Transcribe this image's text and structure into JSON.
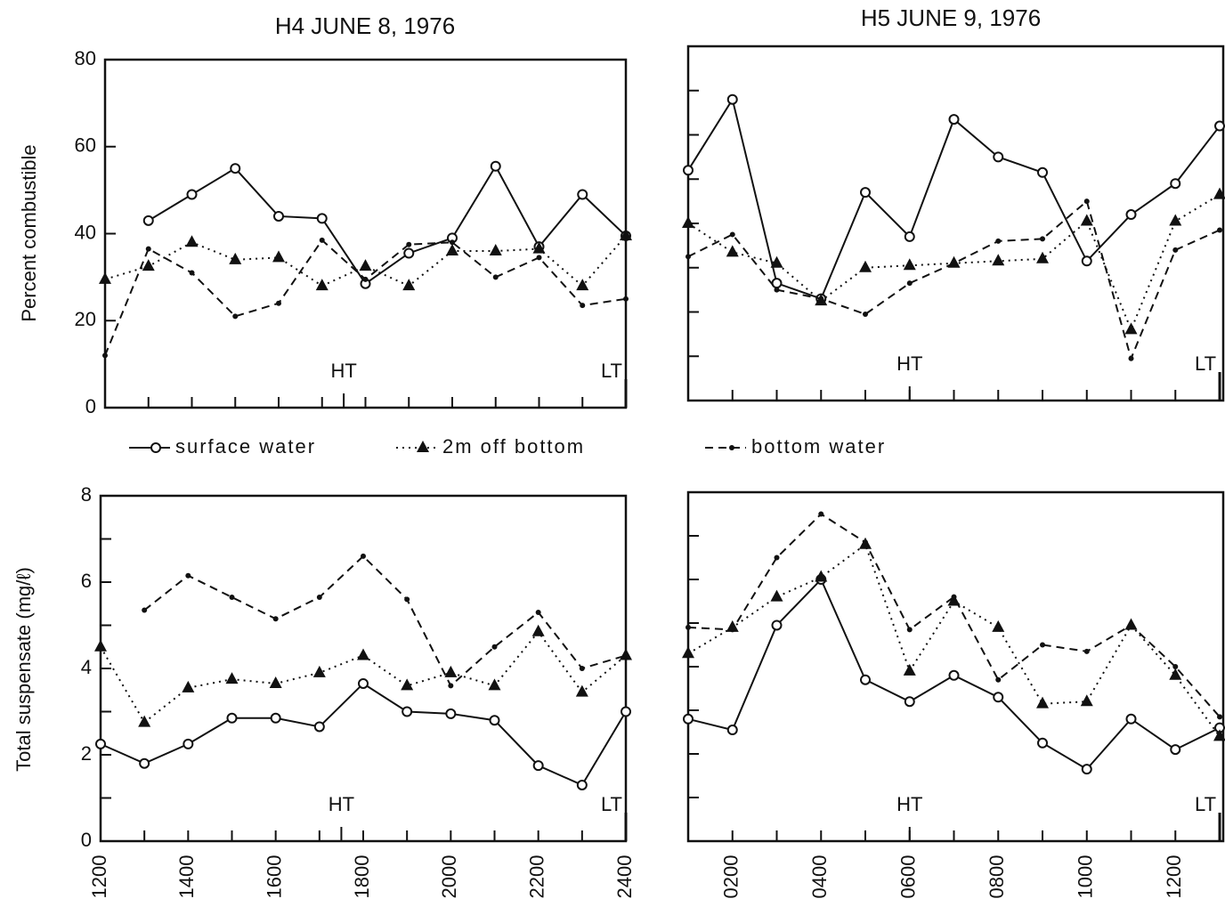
{
  "chart_data": [
    {
      "type": "line",
      "title": "H4 JUNE 8, 1976",
      "ylabel": "Percent combustible",
      "x": [
        1200,
        1300,
        1400,
        1500,
        1600,
        1700,
        1800,
        1900,
        2000,
        2100,
        2200,
        2300,
        2400
      ],
      "xlim": [
        1200,
        2400
      ],
      "ylim": [
        0,
        80
      ],
      "yticks": [
        0,
        20,
        40,
        60,
        80
      ],
      "xminor_ticks": [
        1200,
        1300,
        1400,
        1500,
        1600,
        1700,
        1800,
        1900,
        2000,
        2100,
        2200,
        2300,
        2400
      ],
      "series": [
        {
          "name": "surface water",
          "color": "#111",
          "dash": "solid",
          "marker": "circle",
          "values": [
            null,
            43,
            49,
            55,
            44,
            43.5,
            28.5,
            35.5,
            39,
            55.5,
            37,
            49,
            39.5
          ]
        },
        {
          "name": "2m off bottom",
          "color": "#111",
          "dash": "dotted",
          "marker": "triangle",
          "values": [
            29.5,
            32.5,
            38,
            34,
            34.5,
            28,
            32.5,
            28,
            36,
            36,
            36.5,
            28,
            39.5
          ]
        },
        {
          "name": "bottom water",
          "color": "#111",
          "dash": "dashed",
          "marker": "dot",
          "values": [
            12,
            36.5,
            31,
            21,
            24,
            38.5,
            29.5,
            37.5,
            38,
            30,
            34.5,
            23.5,
            25
          ]
        }
      ],
      "annotations": [
        {
          "text": "HT",
          "x": 1750
        },
        {
          "text": "LT",
          "x": 2400
        }
      ]
    },
    {
      "type": "line",
      "title": "H5 JUNE 9, 1976",
      "x": [
        100,
        200,
        300,
        400,
        500,
        600,
        700,
        800,
        900,
        1000,
        1100,
        1200,
        1300
      ],
      "xlim": [
        100,
        1308
      ],
      "ylim": [
        0,
        80
      ],
      "yminor_ticks": [
        10,
        20,
        30,
        40,
        50,
        60,
        70
      ],
      "xminor_ticks": [
        200,
        300,
        400,
        500,
        600,
        700,
        800,
        900,
        1000,
        1100,
        1200,
        1300
      ],
      "series": [
        {
          "color": "#111",
          "dash": "solid",
          "marker": "circle",
          "values": [
            52,
            68,
            26.5,
            23,
            47,
            37,
            63.5,
            55,
            51.5,
            31.5,
            42,
            49,
            62
          ]
        },
        {
          "color": "#111",
          "dash": "dotted",
          "marker": "triangle",
          "values": [
            40,
            33.5,
            31,
            22.5,
            30,
            30.5,
            31,
            31.5,
            32,
            40.5,
            16,
            40.5,
            46.5
          ]
        },
        {
          "color": "#111",
          "dash": "dashed",
          "marker": "dot",
          "values": [
            32.5,
            37.5,
            25,
            23,
            19.5,
            26.5,
            31,
            36,
            36.5,
            45,
            9.5,
            34,
            38.5
          ]
        }
      ],
      "annotations": [
        {
          "text": "HT",
          "x": 600
        },
        {
          "text": "LT",
          "x": 1300
        }
      ]
    },
    {
      "type": "line",
      "ylabel": "Total suspensate (mg/ℓ)",
      "x": [
        1200,
        1300,
        1400,
        1500,
        1600,
        1700,
        1800,
        1900,
        2000,
        2100,
        2200,
        2300,
        2400
      ],
      "xlim": [
        1200,
        2400
      ],
      "ylim": [
        0,
        8
      ],
      "yticks": [
        0,
        2,
        4,
        6,
        8
      ],
      "yminor_ticks": [
        1,
        3,
        5,
        7
      ],
      "xticks": [
        1200,
        1400,
        1600,
        1800,
        2000,
        2200,
        2400
      ],
      "xminor_ticks": [
        1300,
        1500,
        1700,
        1900,
        2100,
        2300
      ],
      "series": [
        {
          "color": "#111",
          "dash": "solid",
          "marker": "circle",
          "values": [
            2.25,
            1.8,
            2.25,
            2.85,
            2.85,
            2.65,
            3.65,
            3.0,
            2.95,
            2.8,
            1.75,
            1.3,
            3.0
          ]
        },
        {
          "color": "#111",
          "dash": "dotted",
          "marker": "triangle",
          "values": [
            4.5,
            2.75,
            3.55,
            3.75,
            3.65,
            3.9,
            4.3,
            3.6,
            3.9,
            3.6,
            4.85,
            3.45,
            4.3
          ]
        },
        {
          "color": "#111",
          "dash": "dashed",
          "marker": "dot",
          "values": [
            null,
            5.35,
            6.15,
            5.65,
            5.15,
            5.65,
            6.6,
            5.6,
            3.6,
            4.5,
            5.3,
            4.0,
            4.3
          ]
        }
      ],
      "annotations": [
        {
          "text": "HT",
          "x": 1750
        },
        {
          "text": "LT",
          "x": 2400
        }
      ]
    },
    {
      "type": "line",
      "x": [
        100,
        200,
        300,
        400,
        500,
        600,
        700,
        800,
        900,
        1000,
        1100,
        1200,
        1300
      ],
      "xlim": [
        100,
        1308
      ],
      "ylim": [
        0,
        8
      ],
      "yminor_ticks": [
        1,
        2,
        3,
        4,
        5,
        6,
        7
      ],
      "xticks": [
        {
          "value": 200,
          "label": "0200"
        },
        {
          "value": 400,
          "label": "0400"
        },
        {
          "value": 600,
          "label": "0600"
        },
        {
          "value": 800,
          "label": "0800"
        },
        1000,
        1200
      ],
      "xminor_ticks": [
        300,
        500,
        700,
        900,
        1100,
        1300
      ],
      "series": [
        {
          "color": "#111",
          "dash": "solid",
          "marker": "circle",
          "values": [
            2.8,
            2.55,
            4.95,
            6.0,
            3.7,
            3.2,
            3.8,
            3.3,
            2.25,
            1.65,
            2.8,
            2.1,
            2.6
          ]
        },
        {
          "color": "#111",
          "dash": "dotted",
          "marker": "triangle",
          "values": [
            4.3,
            4.9,
            5.6,
            6.05,
            6.8,
            3.9,
            5.5,
            4.9,
            3.15,
            3.2,
            4.95,
            3.8,
            2.4
          ]
        },
        {
          "color": "#111",
          "dash": "dashed",
          "marker": "dot",
          "values": [
            4.9,
            4.85,
            6.5,
            7.5,
            6.85,
            4.85,
            5.6,
            3.7,
            4.5,
            4.35,
            4.95,
            4.0,
            2.85
          ]
        }
      ],
      "annotations": [
        {
          "text": "HT",
          "x": 600
        },
        {
          "text": "LT",
          "x": 1300
        }
      ]
    }
  ]
}
